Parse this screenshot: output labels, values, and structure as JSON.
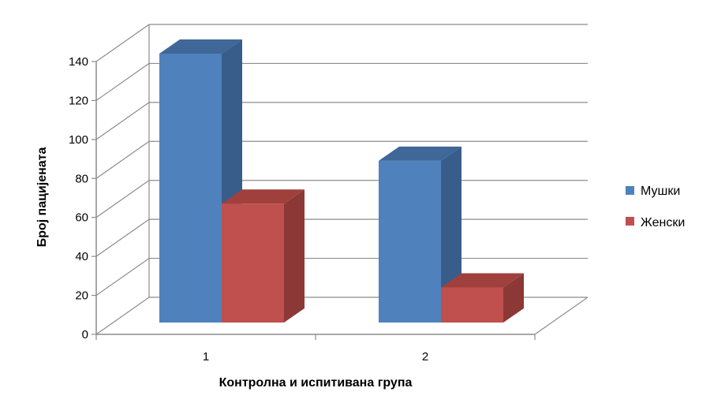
{
  "chart_data": {
    "type": "bar",
    "categories": [
      "1",
      "2"
    ],
    "series": [
      {
        "name": "Мушки",
        "values": [
          138,
          83
        ],
        "color": "#4F81BD",
        "side_color": "#385D8A",
        "top_color": "#3F6797"
      },
      {
        "name": "Женски",
        "values": [
          61,
          18
        ],
        "color": "#C0504D",
        "side_color": "#8C3836",
        "top_color": "#A0403D"
      }
    ],
    "xlabel": "Контролна и испитивана група",
    "ylabel": "Број пацијената",
    "ylim": [
      0,
      140
    ],
    "yticks": [
      "0",
      "20",
      "40",
      "60",
      "80",
      "100",
      "120",
      "140"
    ],
    "grid": true,
    "legend": "right",
    "three_d": true
  }
}
